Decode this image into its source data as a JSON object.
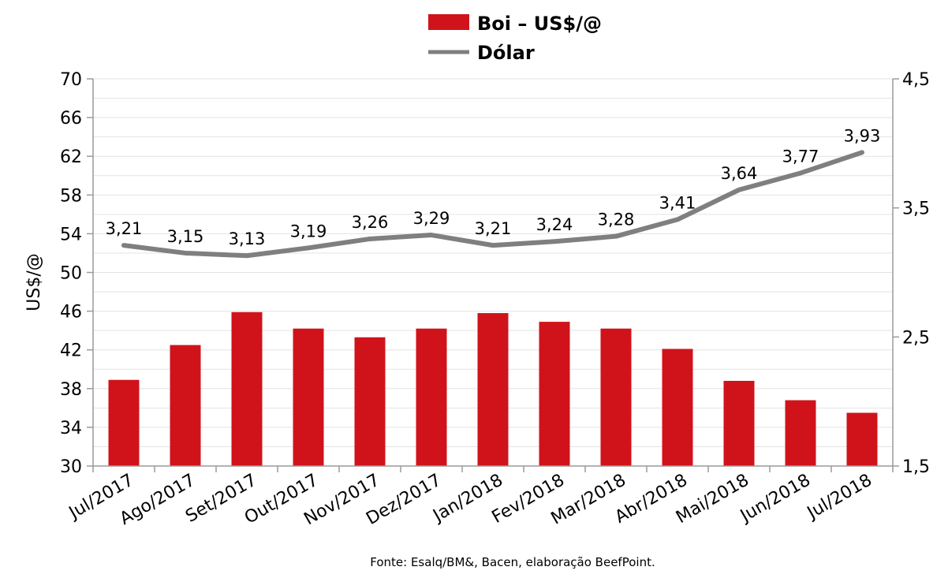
{
  "chart_data": {
    "type": "bar+line",
    "categories": [
      "Jul/2017",
      "Ago/2017",
      "Set/2017",
      "Out/2017",
      "Nov/2017",
      "Dez/2017",
      "Jan/2018",
      "Fev/2018",
      "Mar/2018",
      "Abr/2018",
      "Mai/2018",
      "Jun/2018",
      "Jul/2018"
    ],
    "series": [
      {
        "name": "Boi – US$/@",
        "type": "bar",
        "axis": "left",
        "color": "#d0131b",
        "values": [
          38.9,
          42.5,
          45.9,
          44.2,
          43.3,
          44.2,
          45.8,
          44.9,
          44.2,
          42.1,
          38.8,
          36.8,
          35.5
        ]
      },
      {
        "name": "Dólar",
        "type": "line",
        "axis": "right",
        "color": "#7f7f7f",
        "values": [
          3.21,
          3.15,
          3.13,
          3.19,
          3.26,
          3.29,
          3.21,
          3.24,
          3.28,
          3.41,
          3.64,
          3.77,
          3.93
        ],
        "data_labels": [
          "3,21",
          "3,15",
          "3,13",
          "3,19",
          "3,26",
          "3,29",
          "3,21",
          "3,24",
          "3,28",
          "3,41",
          "3,64",
          "3,77",
          "3,93"
        ]
      }
    ],
    "y_left": {
      "label": "US$/@",
      "range": [
        30,
        70
      ],
      "ticks": [
        "30",
        "34",
        "38",
        "42",
        "46",
        "50",
        "54",
        "58",
        "62",
        "66",
        "70"
      ]
    },
    "y_right": {
      "range": [
        1.5,
        4.5
      ],
      "ticks": [
        "1,5",
        "2,5",
        "3,5",
        "4,5"
      ]
    },
    "grid": true,
    "legend_position": "top-center"
  },
  "legend": [
    {
      "label": "Boi – US$/@",
      "swatch": "bar",
      "color": "#d0131b"
    },
    {
      "label": "Dólar",
      "swatch": "line",
      "color": "#7f7f7f"
    }
  ],
  "source": "Fonte:  Esalq/BM&,  Bacen,  elaboração  BeefPoint."
}
